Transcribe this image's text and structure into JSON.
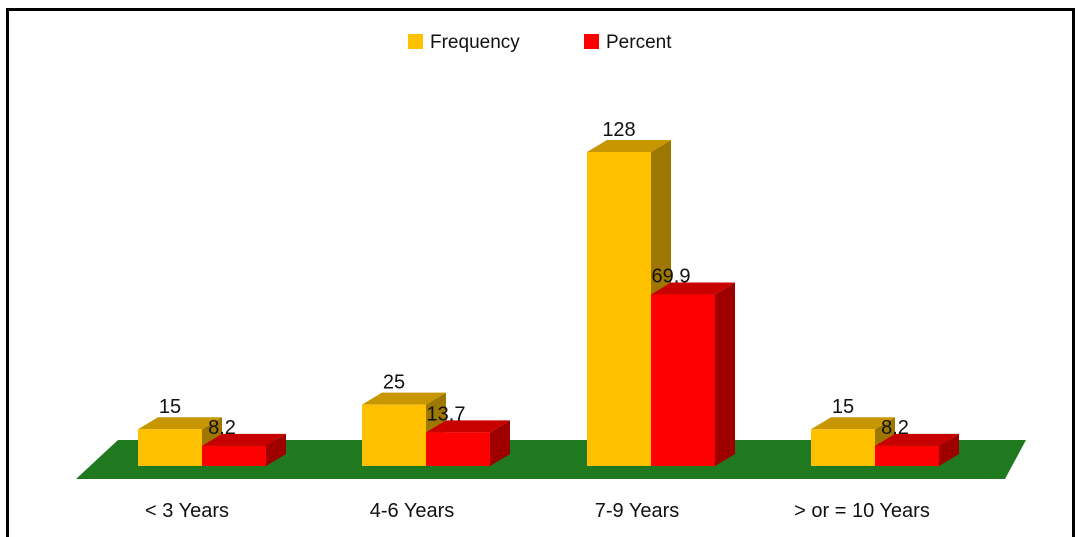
{
  "chart_data": {
    "type": "bar",
    "title": "",
    "xlabel": "",
    "ylabel": "",
    "categories": [
      "< 3 Years",
      "4-6 Years",
      "7-9 Years",
      "> or = 10 Years"
    ],
    "series": [
      {
        "name": "Frequency",
        "values": [
          15,
          25,
          128,
          15
        ],
        "color": "#FFC000",
        "labels": [
          "15",
          "25",
          "128",
          "15"
        ]
      },
      {
        "name": "Percent",
        "values": [
          8.2,
          13.7,
          69.9,
          8.2
        ],
        "color": "#FF0000",
        "labels": [
          "8.2",
          "13.7",
          "69.9",
          "8.2"
        ]
      }
    ],
    "ylim": [
      0,
      140
    ],
    "grid": false,
    "legend_position": "top-center",
    "floor_color": "#1F7A1F",
    "style": "3d-clustered-column"
  }
}
